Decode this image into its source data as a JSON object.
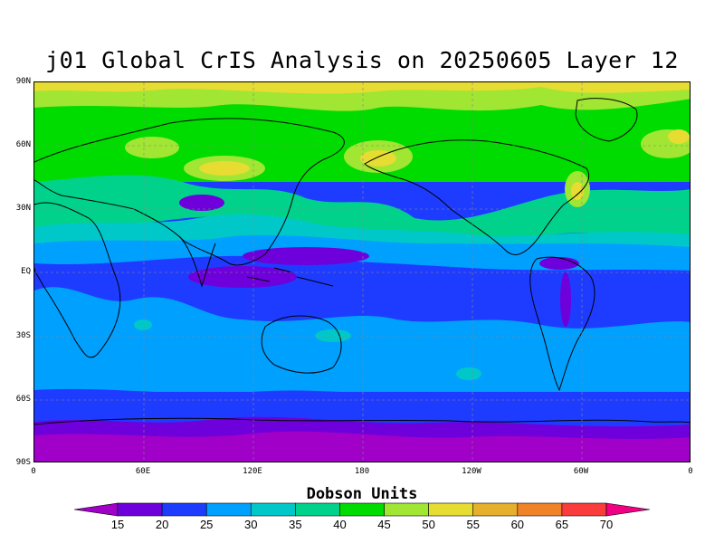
{
  "title": "j01 Global CrIS Analysis on 20250605 Layer 12",
  "lat_labels": [
    "90N",
    "60N",
    "30N",
    "EQ",
    "30S",
    "60S",
    "90S"
  ],
  "lon_labels": [
    "0",
    "60E",
    "120E",
    "180",
    "120W",
    "60W",
    "0"
  ],
  "colorbar": {
    "title": "Dobson Units",
    "levels": [
      "15",
      "20",
      "25",
      "30",
      "35",
      "40",
      "45",
      "50",
      "55",
      "60",
      "65",
      "70"
    ],
    "colors": [
      "#a000c8",
      "#6e00dc",
      "#1e3cff",
      "#00a0ff",
      "#00c8c8",
      "#00d28c",
      "#00dc00",
      "#a0e632",
      "#e6dc32",
      "#e6af2d",
      "#f08228",
      "#fa3c3c",
      "#f00082"
    ]
  },
  "map_colors": {
    "c15": "#a000c8",
    "c20": "#6e00dc",
    "c25": "#1e3cff",
    "c30": "#00a0ff",
    "c35": "#00c8c8",
    "c40": "#00d28c",
    "c45": "#00dc00",
    "c50": "#a0e632",
    "c55": "#e6dc32",
    "c60": "#e6af2d"
  }
}
